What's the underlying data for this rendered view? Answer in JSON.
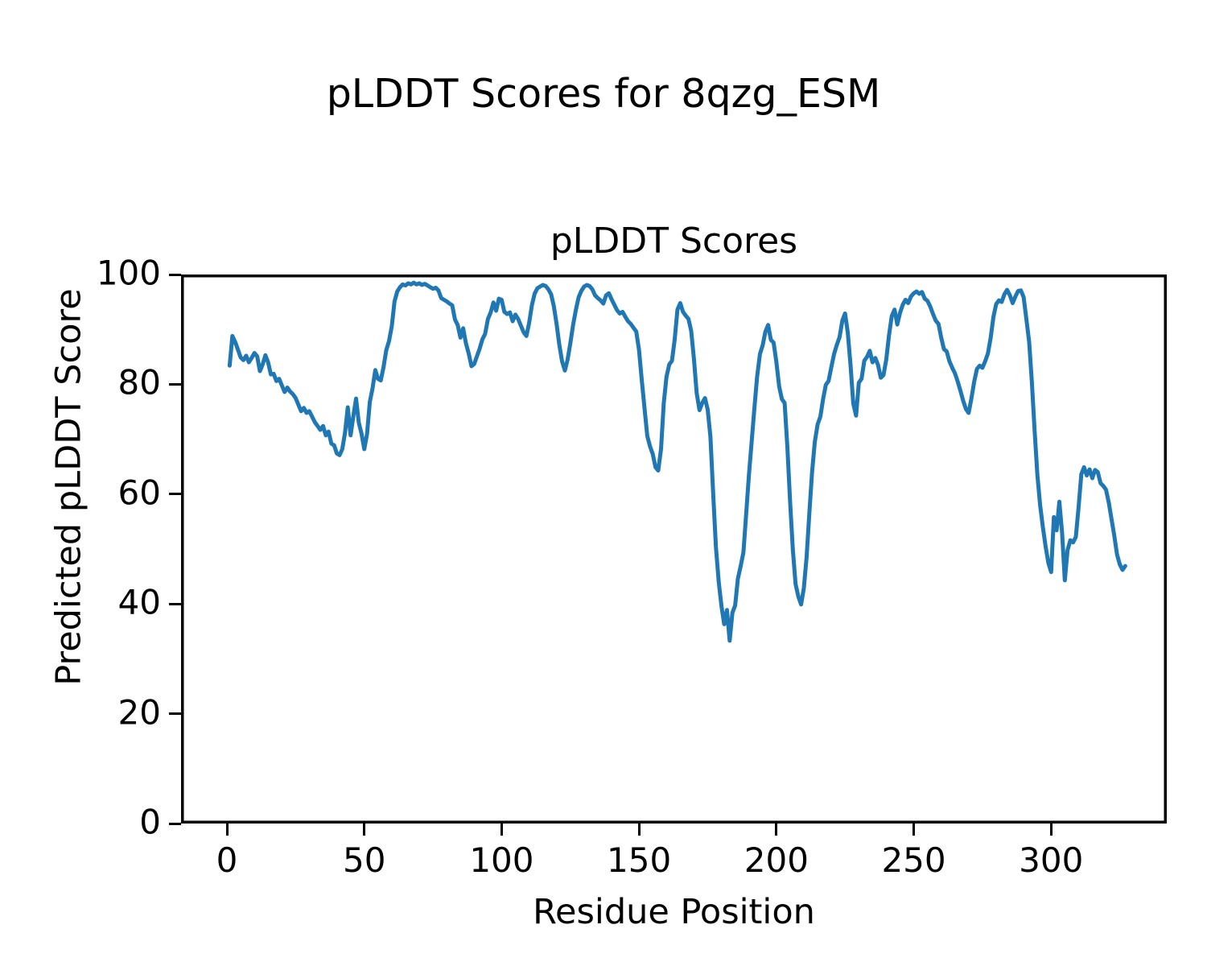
{
  "chart_data": {
    "type": "line",
    "suptitle": "pLDDT Scores for 8qzg_ESM",
    "title": "pLDDT Scores",
    "xlabel": "Residue Position",
    "ylabel": "Predicted pLDDT Score",
    "legend": null,
    "grid": false,
    "line_color": "#1f77b4",
    "line_width": 5,
    "spine_color": "#000000",
    "xlim": [
      -16.7,
      342.1
    ],
    "ylim": [
      0,
      100
    ],
    "x_ticks": [
      0,
      50,
      100,
      150,
      200,
      250,
      300
    ],
    "y_ticks": [
      0,
      20,
      40,
      60,
      80,
      100
    ],
    "x_start": 1,
    "x_step": 1,
    "values": [
      83.4,
      88.8,
      87.7,
      86.3,
      84.9,
      84.4,
      85.2,
      84.0,
      84.8,
      85.7,
      85.1,
      82.4,
      83.6,
      85.3,
      84.0,
      81.8,
      81.9,
      80.6,
      81.0,
      79.8,
      78.6,
      79.4,
      78.7,
      78.2,
      77.5,
      76.3,
      75.1,
      75.7,
      74.8,
      75.1,
      74.1,
      73.1,
      72.4,
      71.7,
      72.4,
      70.7,
      71.4,
      69.2,
      68.9,
      67.4,
      67.1,
      68.2,
      71.2,
      75.8,
      70.7,
      74.2,
      77.4,
      73.0,
      71.0,
      68.2,
      70.9,
      76.8,
      79.3,
      82.6,
      81.0,
      80.7,
      83.1,
      86.2,
      87.9,
      90.6,
      95.1,
      96.9,
      97.7,
      98.2,
      98.0,
      98.4,
      98.2,
      98.5,
      98.2,
      98.4,
      98.1,
      98.3,
      98.0,
      97.7,
      97.4,
      97.6,
      97.1,
      95.7,
      95.4,
      95.1,
      94.7,
      94.4,
      91.8,
      90.8,
      88.5,
      90.2,
      87.5,
      85.6,
      83.3,
      83.7,
      85.1,
      86.5,
      88.2,
      89.2,
      91.9,
      93.1,
      94.9,
      93.4,
      95.6,
      95.4,
      93.2,
      92.8,
      93.1,
      91.5,
      92.7,
      91.9,
      90.7,
      89.5,
      88.8,
      91.2,
      94.4,
      96.5,
      97.5,
      97.8,
      98.1,
      97.9,
      97.3,
      96.4,
      94.2,
      91.0,
      87.2,
      84.2,
      82.5,
      84.5,
      87.5,
      90.8,
      93.5,
      95.8,
      97.0,
      97.8,
      98.1,
      97.9,
      97.3,
      96.2,
      95.7,
      95.3,
      94.7,
      96.2,
      96.6,
      95.5,
      94.5,
      93.5,
      92.9,
      93.2,
      92.3,
      91.5,
      91.0,
      90.3,
      89.6,
      86.3,
      80.7,
      75.6,
      70.6,
      68.7,
      67.3,
      64.9,
      64.3,
      68.2,
      76.6,
      81.4,
      83.6,
      84.3,
      88.2,
      93.6,
      94.8,
      93.2,
      92.5,
      91.9,
      89.7,
      84.6,
      78.4,
      75.3,
      76.6,
      77.5,
      75.4,
      70.4,
      60.1,
      50.4,
      44.0,
      39.6,
      36.3,
      38.9,
      33.3,
      38.4,
      39.7,
      44.6,
      46.9,
      49.4,
      56.4,
      63.4,
      69.5,
      75.6,
      81.4,
      85.5,
      87.1,
      89.6,
      90.8,
      88.1,
      87.6,
      84.1,
      79.6,
      77.3,
      76.6,
      68.6,
      58.6,
      49.9,
      43.6,
      41.3,
      39.9,
      42.9,
      48.5,
      56.5,
      64.0,
      69.5,
      72.7,
      74.1,
      77.3,
      79.9,
      80.6,
      83.1,
      85.5,
      87.2,
      88.6,
      91.6,
      92.9,
      89.4,
      83.5,
      76.5,
      74.3,
      80.3,
      81.0,
      84.3,
      85.0,
      86.1,
      84.0,
      84.8,
      83.5,
      81.2,
      81.7,
      84.5,
      88.9,
      92.4,
      93.6,
      90.9,
      93.0,
      94.5,
      95.4,
      94.8,
      96.0,
      96.6,
      96.9,
      96.5,
      96.8,
      95.6,
      95.2,
      94.2,
      92.8,
      91.6,
      91.0,
      88.5,
      86.4,
      86.0,
      84.2,
      83.0,
      82.0,
      80.5,
      78.8,
      77.0,
      75.5,
      74.8,
      77.5,
      80.5,
      82.8,
      83.4,
      83.0,
      84.2,
      85.6,
      88.5,
      92.3,
      94.6,
      95.3,
      95.0,
      96.4,
      97.2,
      96.2,
      94.8,
      96.0,
      97.0,
      97.1,
      95.9,
      91.9,
      87.7,
      80.3,
      71.5,
      63.5,
      58.0,
      54.0,
      50.5,
      47.5,
      45.8,
      55.8,
      53.4,
      58.6,
      53.0,
      44.3,
      49.8,
      51.6,
      51.2,
      52.2,
      57.6,
      63.6,
      64.9,
      63.4,
      64.5,
      62.9,
      64.4,
      64.0,
      62.0,
      61.5,
      60.8,
      58.4,
      55.4,
      52.4,
      49.0,
      47.2,
      46.2,
      46.9
    ]
  }
}
